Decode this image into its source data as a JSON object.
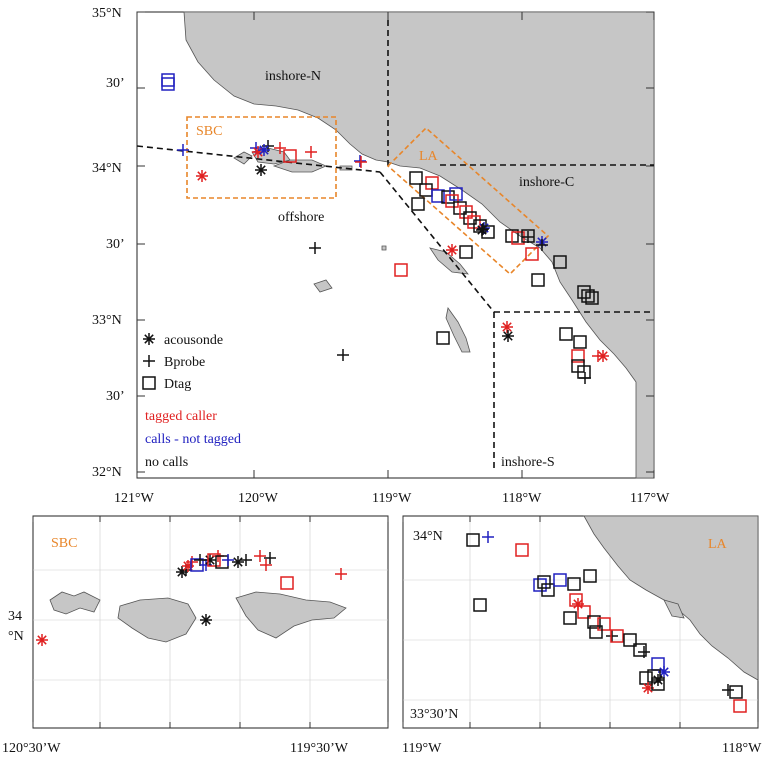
{
  "main_map": {
    "lat_labels": [
      "35°N",
      "30’",
      "34°N",
      "30’",
      "33°N",
      "30’",
      "32°N"
    ],
    "lon_labels": [
      "121°W",
      "120°W",
      "119°W",
      "118°W",
      "117°W"
    ],
    "region_labels": {
      "inshore_n": "inshore-N",
      "inshore_c": "inshore-C",
      "inshore_s": "inshore-S",
      "offshore": "offshore",
      "sbc": "SBC",
      "la": "LA"
    },
    "legend": {
      "acousonde": "acousonde",
      "bprobe": "Bprobe",
      "dtag": "Dtag",
      "tagged_caller": "tagged caller",
      "calls_not_tagged": "calls - not tagged",
      "no_calls": "no calls"
    }
  },
  "inset_sbc": {
    "title": "SBC",
    "lat_label_line1": "34",
    "lat_label_line2": "°N",
    "lon_labels": [
      "120°30’W",
      "119°30’W"
    ]
  },
  "inset_la": {
    "title": "LA",
    "lat_labels": [
      "34°N",
      "33°30’N"
    ],
    "lon_labels": [
      "119°W",
      "118°W"
    ]
  },
  "colors": {
    "tagged_caller": "#e02020",
    "calls_not_tagged": "#2020c0",
    "no_calls": "#111111",
    "land": "#c6c6c6",
    "region_box": "#e8862a"
  },
  "icons": {
    "acousonde": "asterisk-icon",
    "bprobe": "plus-icon",
    "dtag": "square-icon"
  }
}
